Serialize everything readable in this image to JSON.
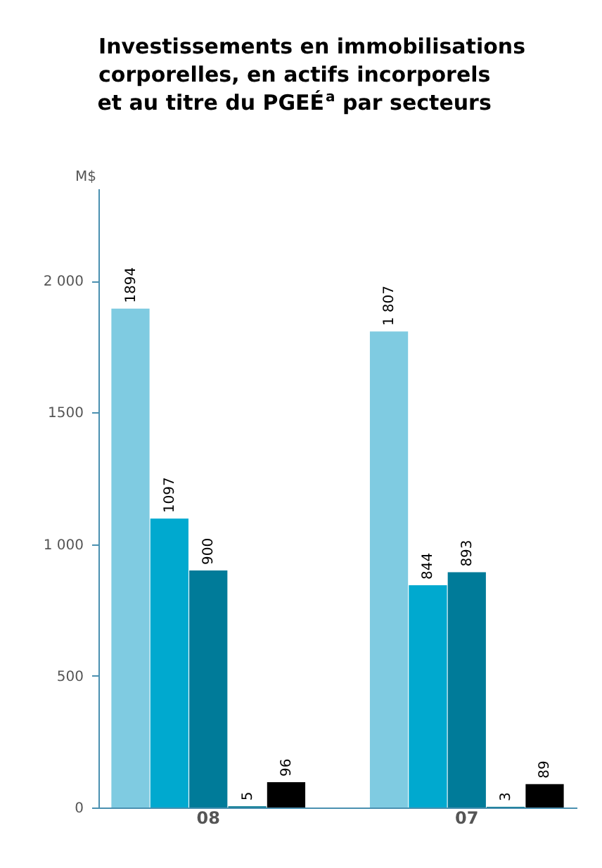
{
  "chart_data": {
    "type": "bar",
    "title": "Investissements en immobilisations corporelles, en actifs incorporels et au titre du PGEÉ$^{a}$ par secteurs",
    "ylabel": "M$",
    "categories": [
      "08",
      "07"
    ],
    "series": [
      {
        "color": "#7fcbe1",
        "values": [
          1894,
          1807
        ],
        "value_labels": [
          "1894",
          "1 807"
        ]
      },
      {
        "color": "#00a9cf",
        "values": [
          1097,
          844
        ],
        "value_labels": [
          "1097",
          "844"
        ]
      },
      {
        "color": "#007b99",
        "values": [
          900,
          893
        ],
        "value_labels": [
          "900",
          "893"
        ]
      },
      {
        "color": "#00778f",
        "values": [
          5,
          3
        ],
        "value_labels": [
          "5",
          "3"
        ]
      },
      {
        "color": "#000000",
        "values": [
          96,
          89
        ],
        "value_labels": [
          "96",
          "89"
        ]
      }
    ],
    "ylim": [
      0,
      2350
    ],
    "yticks": [
      0,
      500,
      {
        "value": 1000,
        "label": "1 000"
      },
      1500,
      {
        "value": 2000,
        "label": "2 000"
      }
    ],
    "grid": false,
    "legend": false
  }
}
